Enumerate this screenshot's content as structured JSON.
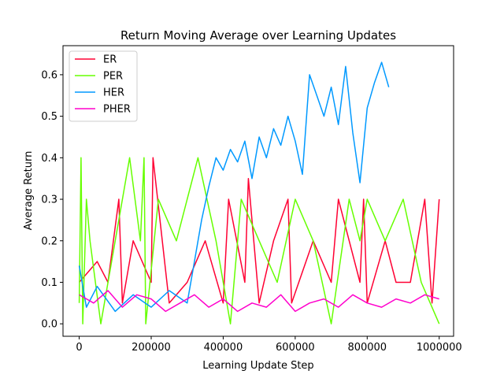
{
  "chart_data": {
    "type": "line",
    "title": "Return Moving Average over Learning Updates",
    "xlabel": "Learning Update Step",
    "ylabel": "Average Return",
    "xlim": [
      -45000,
      1040000
    ],
    "ylim": [
      -0.03,
      0.67
    ],
    "xticks": [
      {
        "value": 0,
        "label": "0"
      },
      {
        "value": 200000,
        "label": "200000"
      },
      {
        "value": 400000,
        "label": "400000"
      },
      {
        "value": 600000,
        "label": "600000"
      },
      {
        "value": 800000,
        "label": "800000"
      },
      {
        "value": 1000000,
        "label": "1000000"
      }
    ],
    "yticks": [
      {
        "value": 0.0,
        "label": "0.0"
      },
      {
        "value": 0.1,
        "label": "0.1"
      },
      {
        "value": 0.2,
        "label": "0.2"
      },
      {
        "value": 0.3,
        "label": "0.3"
      },
      {
        "value": 0.4,
        "label": "0.4"
      },
      {
        "value": 0.5,
        "label": "0.5"
      },
      {
        "value": 0.6,
        "label": "0.6"
      }
    ],
    "grid": false,
    "legend_position": "top-left",
    "series": [
      {
        "name": "ER",
        "color": "#ff0033",
        "x": [
          0,
          50000,
          80000,
          110000,
          120000,
          150000,
          200000,
          205000,
          250000,
          300000,
          350000,
          400000,
          415000,
          460000,
          470000,
          500000,
          540000,
          580000,
          590000,
          650000,
          700000,
          720000,
          780000,
          790000,
          800000,
          850000,
          880000,
          920000,
          960000,
          980000,
          1000000
        ],
        "values": [
          0.1,
          0.15,
          0.1,
          0.3,
          0.05,
          0.2,
          0.1,
          0.4,
          0.05,
          0.1,
          0.2,
          0.05,
          0.3,
          0.1,
          0.35,
          0.05,
          0.2,
          0.3,
          0.05,
          0.2,
          0.1,
          0.3,
          0.1,
          0.3,
          0.05,
          0.2,
          0.1,
          0.1,
          0.3,
          0.05,
          0.3
        ]
      },
      {
        "name": "PER",
        "color": "#66ff00",
        "x": [
          0,
          5000,
          10000,
          20000,
          30000,
          60000,
          100000,
          140000,
          170000,
          180000,
          185000,
          220000,
          270000,
          300000,
          330000,
          380000,
          420000,
          450000,
          500000,
          550000,
          600000,
          650000,
          700000,
          750000,
          780000,
          800000,
          850000,
          900000,
          950000,
          1000000
        ],
        "values": [
          0.05,
          0.4,
          0.0,
          0.3,
          0.2,
          0.0,
          0.2,
          0.4,
          0.2,
          0.4,
          0.0,
          0.3,
          0.2,
          0.3,
          0.4,
          0.2,
          0.0,
          0.3,
          0.2,
          0.1,
          0.3,
          0.2,
          0.0,
          0.3,
          0.2,
          0.3,
          0.2,
          0.3,
          0.1,
          0.0
        ]
      },
      {
        "name": "HER",
        "color": "#0099ff",
        "x": [
          0,
          20000,
          50000,
          100000,
          150000,
          200000,
          250000,
          300000,
          320000,
          340000,
          360000,
          380000,
          400000,
          420000,
          440000,
          460000,
          480000,
          500000,
          520000,
          540000,
          560000,
          580000,
          600000,
          620000,
          640000,
          660000,
          680000,
          700000,
          720000,
          740000,
          760000,
          780000,
          800000,
          820000,
          840000,
          860000
        ],
        "values": [
          0.14,
          0.04,
          0.09,
          0.03,
          0.07,
          0.04,
          0.08,
          0.05,
          0.15,
          0.25,
          0.33,
          0.4,
          0.37,
          0.42,
          0.39,
          0.44,
          0.35,
          0.45,
          0.4,
          0.47,
          0.43,
          0.5,
          0.44,
          0.36,
          0.6,
          0.55,
          0.5,
          0.57,
          0.48,
          0.62,
          0.46,
          0.34,
          0.52,
          0.58,
          0.63,
          0.57
        ]
      },
      {
        "name": "PHER",
        "color": "#ff00cc",
        "x": [
          0,
          40000,
          80000,
          120000,
          160000,
          200000,
          240000,
          280000,
          320000,
          360000,
          400000,
          440000,
          480000,
          520000,
          560000,
          600000,
          640000,
          680000,
          720000,
          760000,
          800000,
          840000,
          880000,
          920000,
          960000,
          1000000
        ],
        "values": [
          0.07,
          0.05,
          0.08,
          0.04,
          0.07,
          0.06,
          0.03,
          0.05,
          0.07,
          0.04,
          0.06,
          0.03,
          0.05,
          0.04,
          0.07,
          0.03,
          0.05,
          0.06,
          0.04,
          0.07,
          0.05,
          0.04,
          0.06,
          0.05,
          0.07,
          0.06
        ]
      }
    ]
  }
}
